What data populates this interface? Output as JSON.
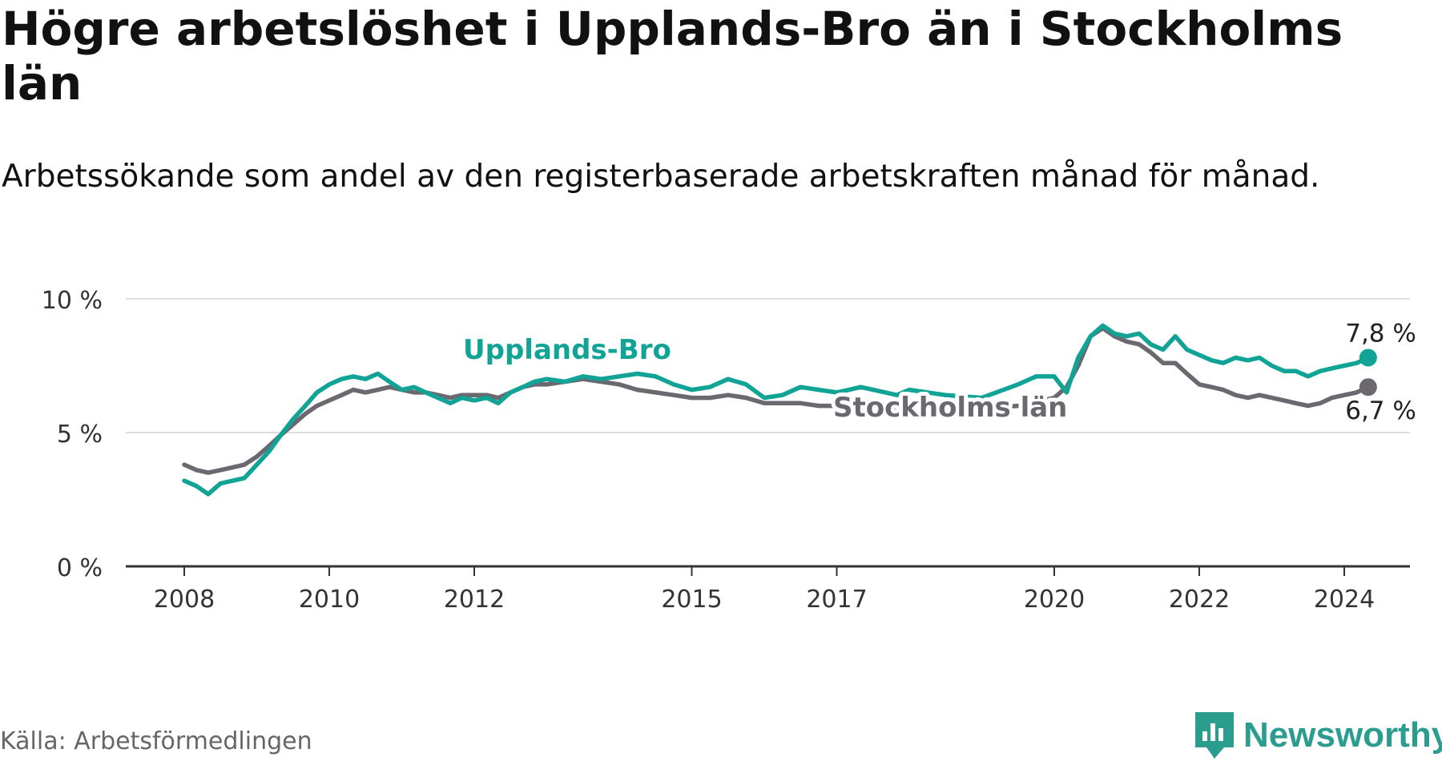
{
  "title": "Högre arbetslöshet i Upplands-Bro än i Stockholms län",
  "subtitle": "Arbetssökande som andel av den registerbaserade arbetskraften månad för månad.",
  "source": "Källa: Arbetsförmedlingen",
  "logo": {
    "text": "Newsworthy",
    "icon": "bar-chart-icon"
  },
  "colors": {
    "upplands": "#10a396",
    "stockholm": "#6b6870",
    "grid": "#dddddd",
    "axis": "#333333"
  },
  "chart_data": {
    "type": "line",
    "title": "Högre arbetslöshet i Upplands-Bro än i Stockholms län",
    "xlabel": "",
    "ylabel": "",
    "xlim": [
      2008,
      2024.9
    ],
    "ylim": [
      0,
      10
    ],
    "y_ticks": [
      0,
      5,
      10
    ],
    "y_tick_labels": [
      "0 %",
      "5 %",
      "10 %"
    ],
    "x_ticks": [
      2008,
      2010,
      2012,
      2015,
      2017,
      2020,
      2022,
      2024
    ],
    "x_tick_labels": [
      "2008",
      "2010",
      "2012",
      "2015",
      "2017",
      "2020",
      "2022",
      "2024"
    ],
    "series": [
      {
        "name": "Upplands-Bro",
        "label": "Upplands-Bro",
        "end_label": "7,8 %",
        "end_value": 7.8,
        "points": [
          [
            2008.0,
            3.2
          ],
          [
            2008.17,
            3.0
          ],
          [
            2008.33,
            2.7
          ],
          [
            2008.5,
            3.1
          ],
          [
            2008.67,
            3.2
          ],
          [
            2008.83,
            3.3
          ],
          [
            2009.0,
            3.8
          ],
          [
            2009.17,
            4.3
          ],
          [
            2009.33,
            4.9
          ],
          [
            2009.5,
            5.5
          ],
          [
            2009.67,
            6.0
          ],
          [
            2009.83,
            6.5
          ],
          [
            2010.0,
            6.8
          ],
          [
            2010.17,
            7.0
          ],
          [
            2010.33,
            7.1
          ],
          [
            2010.5,
            7.0
          ],
          [
            2010.67,
            7.2
          ],
          [
            2010.83,
            6.9
          ],
          [
            2011.0,
            6.6
          ],
          [
            2011.17,
            6.7
          ],
          [
            2011.33,
            6.5
          ],
          [
            2011.5,
            6.3
          ],
          [
            2011.67,
            6.1
          ],
          [
            2011.83,
            6.3
          ],
          [
            2012.0,
            6.2
          ],
          [
            2012.17,
            6.3
          ],
          [
            2012.33,
            6.1
          ],
          [
            2012.5,
            6.5
          ],
          [
            2012.67,
            6.7
          ],
          [
            2012.83,
            6.9
          ],
          [
            2013.0,
            7.0
          ],
          [
            2013.25,
            6.9
          ],
          [
            2013.5,
            7.1
          ],
          [
            2013.75,
            7.0
          ],
          [
            2014.0,
            7.1
          ],
          [
            2014.25,
            7.2
          ],
          [
            2014.5,
            7.1
          ],
          [
            2014.75,
            6.8
          ],
          [
            2015.0,
            6.6
          ],
          [
            2015.25,
            6.7
          ],
          [
            2015.5,
            7.0
          ],
          [
            2015.75,
            6.8
          ],
          [
            2016.0,
            6.3
          ],
          [
            2016.25,
            6.4
          ],
          [
            2016.5,
            6.7
          ],
          [
            2016.75,
            6.6
          ],
          [
            2017.0,
            6.5
          ],
          [
            2017.17,
            6.6
          ],
          [
            2017.33,
            6.7
          ],
          [
            2017.5,
            6.6
          ],
          [
            2017.67,
            6.5
          ],
          [
            2017.83,
            6.4
          ],
          [
            2018.0,
            6.6
          ],
          [
            2018.5,
            6.4
          ],
          [
            2019.0,
            6.3
          ],
          [
            2019.5,
            6.8
          ],
          [
            2019.75,
            7.1
          ],
          [
            2020.0,
            7.1
          ],
          [
            2020.17,
            6.5
          ],
          [
            2020.33,
            7.8
          ],
          [
            2020.5,
            8.6
          ],
          [
            2020.67,
            9.0
          ],
          [
            2020.83,
            8.7
          ],
          [
            2021.0,
            8.6
          ],
          [
            2021.17,
            8.7
          ],
          [
            2021.33,
            8.3
          ],
          [
            2021.5,
            8.1
          ],
          [
            2021.67,
            8.6
          ],
          [
            2021.83,
            8.1
          ],
          [
            2022.0,
            7.9
          ],
          [
            2022.17,
            7.7
          ],
          [
            2022.33,
            7.6
          ],
          [
            2022.5,
            7.8
          ],
          [
            2022.67,
            7.7
          ],
          [
            2022.83,
            7.8
          ],
          [
            2023.0,
            7.5
          ],
          [
            2023.17,
            7.3
          ],
          [
            2023.33,
            7.3
          ],
          [
            2023.5,
            7.1
          ],
          [
            2023.67,
            7.3
          ],
          [
            2023.83,
            7.4
          ],
          [
            2024.0,
            7.5
          ],
          [
            2024.17,
            7.6
          ],
          [
            2024.33,
            7.8
          ]
        ]
      },
      {
        "name": "Stockholms län",
        "label": "Stockholms län",
        "end_label": "6,7 %",
        "end_value": 6.7,
        "points": [
          [
            2008.0,
            3.8
          ],
          [
            2008.17,
            3.6
          ],
          [
            2008.33,
            3.5
          ],
          [
            2008.5,
            3.6
          ],
          [
            2008.67,
            3.7
          ],
          [
            2008.83,
            3.8
          ],
          [
            2009.0,
            4.1
          ],
          [
            2009.17,
            4.5
          ],
          [
            2009.33,
            4.9
          ],
          [
            2009.5,
            5.3
          ],
          [
            2009.67,
            5.7
          ],
          [
            2009.83,
            6.0
          ],
          [
            2010.0,
            6.2
          ],
          [
            2010.17,
            6.4
          ],
          [
            2010.33,
            6.6
          ],
          [
            2010.5,
            6.5
          ],
          [
            2010.67,
            6.6
          ],
          [
            2010.83,
            6.7
          ],
          [
            2011.0,
            6.6
          ],
          [
            2011.17,
            6.5
          ],
          [
            2011.33,
            6.5
          ],
          [
            2011.5,
            6.4
          ],
          [
            2011.67,
            6.3
          ],
          [
            2011.83,
            6.4
          ],
          [
            2012.0,
            6.4
          ],
          [
            2012.17,
            6.4
          ],
          [
            2012.33,
            6.3
          ],
          [
            2012.5,
            6.5
          ],
          [
            2012.67,
            6.7
          ],
          [
            2012.83,
            6.8
          ],
          [
            2013.0,
            6.8
          ],
          [
            2013.25,
            6.9
          ],
          [
            2013.5,
            7.0
          ],
          [
            2013.75,
            6.9
          ],
          [
            2014.0,
            6.8
          ],
          [
            2014.25,
            6.6
          ],
          [
            2014.5,
            6.5
          ],
          [
            2014.75,
            6.4
          ],
          [
            2015.0,
            6.3
          ],
          [
            2015.25,
            6.3
          ],
          [
            2015.5,
            6.4
          ],
          [
            2015.75,
            6.3
          ],
          [
            2016.0,
            6.1
          ],
          [
            2016.25,
            6.1
          ],
          [
            2016.5,
            6.1
          ],
          [
            2016.75,
            6.0
          ],
          [
            2017.0,
            6.0
          ],
          [
            2017.5,
            5.9
          ],
          [
            2018.0,
            5.8
          ],
          [
            2018.5,
            5.8
          ],
          [
            2019.0,
            5.9
          ],
          [
            2019.5,
            6.0
          ],
          [
            2020.0,
            6.3
          ],
          [
            2020.17,
            6.7
          ],
          [
            2020.33,
            7.5
          ],
          [
            2020.5,
            8.6
          ],
          [
            2020.67,
            8.9
          ],
          [
            2020.83,
            8.6
          ],
          [
            2021.0,
            8.4
          ],
          [
            2021.17,
            8.3
          ],
          [
            2021.33,
            8.0
          ],
          [
            2021.5,
            7.6
          ],
          [
            2021.67,
            7.6
          ],
          [
            2021.83,
            7.2
          ],
          [
            2022.0,
            6.8
          ],
          [
            2022.17,
            6.7
          ],
          [
            2022.33,
            6.6
          ],
          [
            2022.5,
            6.4
          ],
          [
            2022.67,
            6.3
          ],
          [
            2022.83,
            6.4
          ],
          [
            2023.0,
            6.3
          ],
          [
            2023.17,
            6.2
          ],
          [
            2023.33,
            6.1
          ],
          [
            2023.5,
            6.0
          ],
          [
            2023.67,
            6.1
          ],
          [
            2023.83,
            6.3
          ],
          [
            2024.0,
            6.4
          ],
          [
            2024.17,
            6.5
          ],
          [
            2024.33,
            6.7
          ]
        ]
      }
    ]
  }
}
